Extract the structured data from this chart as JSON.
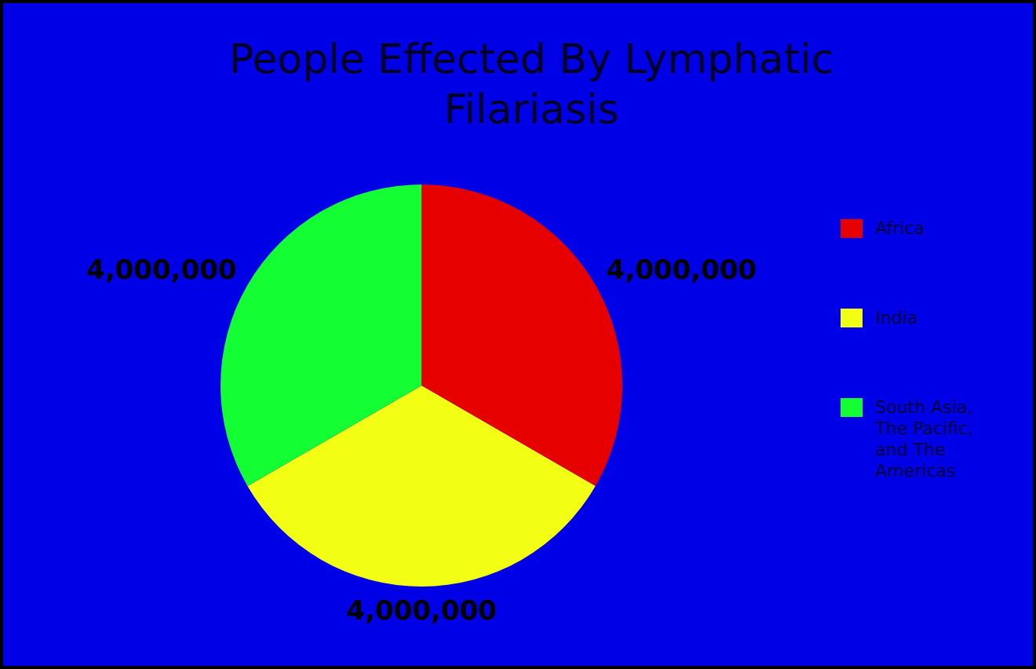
{
  "chart_data": {
    "type": "pie",
    "title": "People Effected By Lymphatic Filariasis",
    "categories": [
      "Africa",
      "India",
      "South Asia, The Pacific, and The Americas"
    ],
    "values": [
      4000000,
      4000000,
      4000000
    ],
    "colors": [
      "#e60000",
      "#f2ff14",
      "#14ff33"
    ],
    "value_labels": [
      "4,000,000",
      "4,000,000",
      "4,000,000"
    ],
    "legend": "right"
  }
}
